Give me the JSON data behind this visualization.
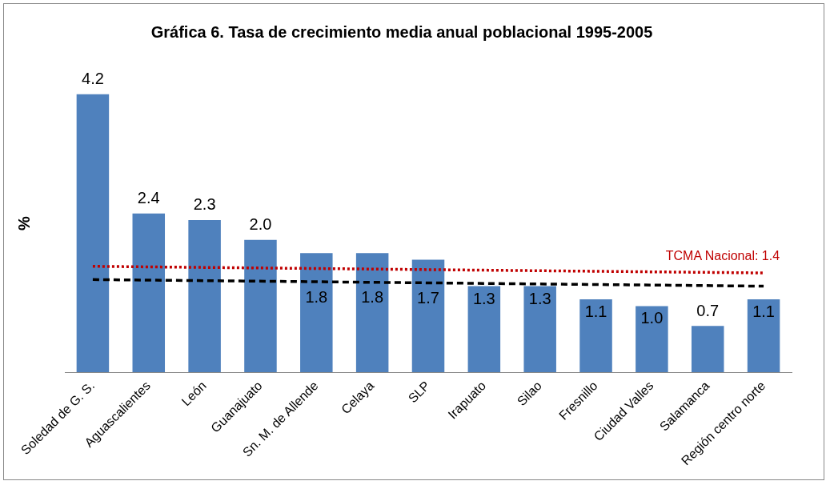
{
  "chart_data": {
    "type": "bar",
    "title": "Gráfica 6. Tasa de crecimiento media anual poblacional 1995-2005",
    "ylabel": "%",
    "categories": [
      "Soledad de G. S.",
      "Aguascalientes",
      "León",
      "Guanajuato",
      "Sn. M. de Allende",
      "Celaya",
      "SLP",
      "Irapuato",
      "Silao",
      "Fresnillo",
      "Ciudad Valles",
      "Salamanca",
      "Región centro norte"
    ],
    "series": [
      {
        "color": "#4f81bd",
        "values": [
          4.2,
          2.4,
          2.3,
          2.0,
          1.8,
          1.8,
          1.7,
          1.3,
          1.3,
          1.1,
          1.0,
          0.7,
          1.1
        ],
        "value_labels": [
          "4.2",
          "2.4",
          "2.3",
          "2.0",
          "1.8",
          "1.8",
          "1.7",
          "1.3",
          "1.3",
          "1.1",
          "1.0",
          "0.7",
          "1.1"
        ]
      },
      {
        "type": "line",
        "name": "TCMA Nacional: 1.4",
        "color": "#c00000",
        "line_style": "dotted",
        "x": [
          "Soledad de G. S.",
          "Región centro norte"
        ],
        "values": [
          1.6,
          1.5
        ]
      },
      {
        "type": "line",
        "color": "#000000",
        "line_style": "dashed",
        "x": [
          "Soledad de G. S.",
          "Región centro norte"
        ],
        "values": [
          1.4,
          1.3
        ]
      }
    ],
    "tick_labels": "x",
    "grid": false,
    "legend": false,
    "marker": "none"
  }
}
